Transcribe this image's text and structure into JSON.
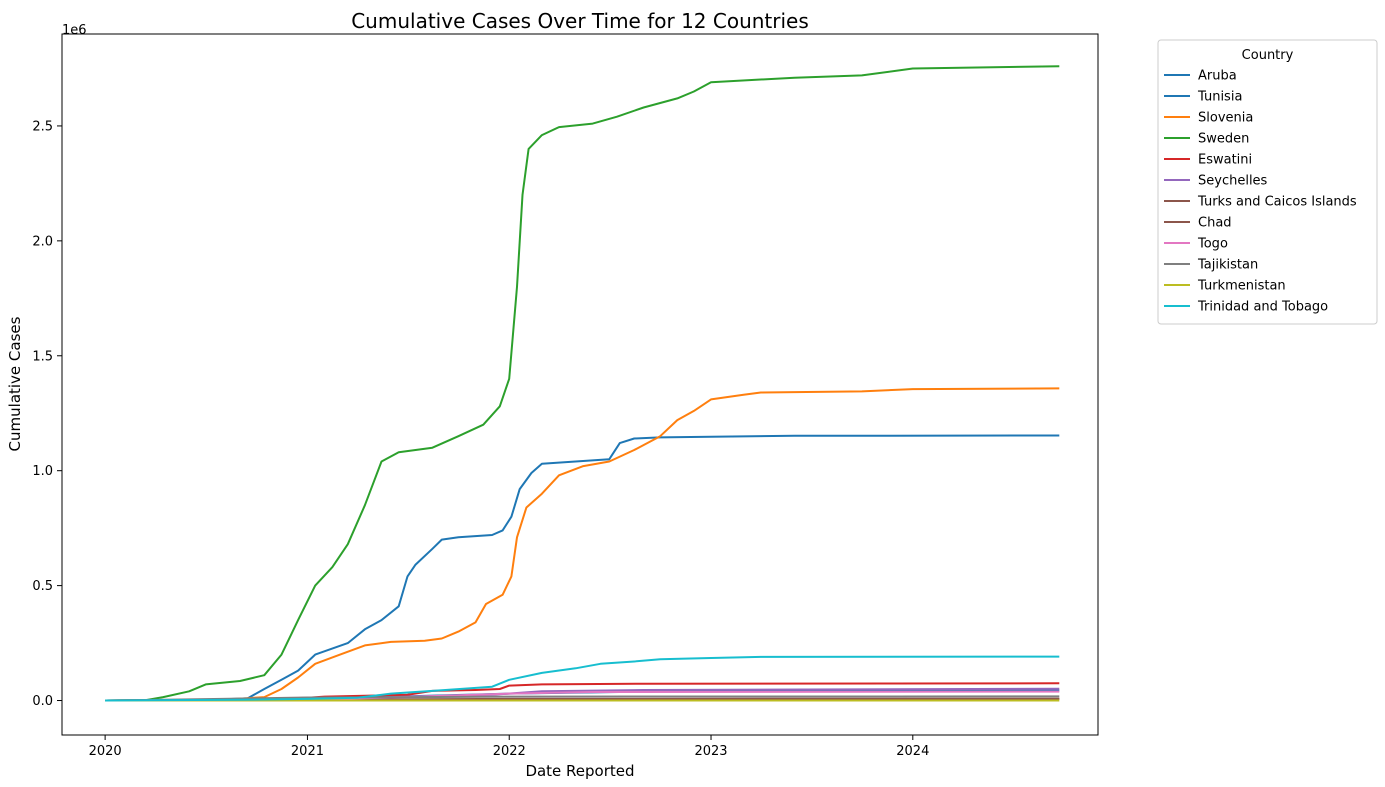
{
  "chart_data": {
    "type": "line",
    "title": "Cumulative Cases Over Time for 12 Countries",
    "xlabel": "Date Reported",
    "ylabel": "Cumulative Cases",
    "y_offset_label": "1e6",
    "ylim": [
      -150000,
      2900000
    ],
    "xlim": [
      "2019-10-15",
      "2024-12-01"
    ],
    "x_ticks": [
      "2020",
      "2021",
      "2022",
      "2023",
      "2024"
    ],
    "x_tick_dates": [
      "2020-01-01",
      "2021-01-01",
      "2022-01-01",
      "2023-01-01",
      "2024-01-01"
    ],
    "y_ticks": [
      0,
      500000,
      1000000,
      1500000,
      2000000,
      2500000
    ],
    "y_tick_labels": [
      "0.0",
      "0.5",
      "1.0",
      "1.5",
      "2.0",
      "2.5"
    ],
    "grid": false,
    "legend_title": "Country",
    "legend_position": "outside top-right",
    "series": [
      {
        "name": "Aruba",
        "color": "#1f77b4",
        "points": [
          [
            "2020-01-01",
            0
          ],
          [
            "2020-06-01",
            1000
          ],
          [
            "2021-01-01",
            7000
          ],
          [
            "2022-01-01",
            30000
          ],
          [
            "2023-01-01",
            43000
          ],
          [
            "2024-09-22",
            44000
          ]
        ]
      },
      {
        "name": "Tunisia",
        "color": "#1f77b4",
        "points": [
          [
            "2020-01-01",
            0
          ],
          [
            "2020-07-01",
            2000
          ],
          [
            "2020-09-15",
            10000
          ],
          [
            "2020-10-15",
            50000
          ],
          [
            "2020-11-15",
            90000
          ],
          [
            "2020-12-15",
            130000
          ],
          [
            "2021-01-15",
            200000
          ],
          [
            "2021-03-15",
            250000
          ],
          [
            "2021-04-15",
            310000
          ],
          [
            "2021-05-15",
            350000
          ],
          [
            "2021-06-15",
            410000
          ],
          [
            "2021-07-01",
            540000
          ],
          [
            "2021-07-15",
            590000
          ],
          [
            "2021-08-15",
            660000
          ],
          [
            "2021-09-01",
            700000
          ],
          [
            "2021-10-01",
            710000
          ],
          [
            "2021-12-01",
            720000
          ],
          [
            "2021-12-20",
            740000
          ],
          [
            "2022-01-05",
            800000
          ],
          [
            "2022-01-20",
            920000
          ],
          [
            "2022-02-10",
            990000
          ],
          [
            "2022-03-01",
            1030000
          ],
          [
            "2022-05-01",
            1040000
          ],
          [
            "2022-07-01",
            1050000
          ],
          [
            "2022-07-20",
            1120000
          ],
          [
            "2022-08-15",
            1140000
          ],
          [
            "2022-10-01",
            1145000
          ],
          [
            "2023-01-01",
            1148000
          ],
          [
            "2023-06-01",
            1152000
          ],
          [
            "2024-09-22",
            1153000
          ]
        ]
      },
      {
        "name": "Slovenia",
        "color": "#ff7f0e",
        "points": [
          [
            "2020-01-01",
            0
          ],
          [
            "2020-08-01",
            3000
          ],
          [
            "2020-10-15",
            15000
          ],
          [
            "2020-11-15",
            50000
          ],
          [
            "2020-12-15",
            100000
          ],
          [
            "2021-01-15",
            160000
          ],
          [
            "2021-03-01",
            200000
          ],
          [
            "2021-04-15",
            240000
          ],
          [
            "2021-06-01",
            255000
          ],
          [
            "2021-08-01",
            260000
          ],
          [
            "2021-09-01",
            270000
          ],
          [
            "2021-10-01",
            300000
          ],
          [
            "2021-11-01",
            340000
          ],
          [
            "2021-11-20",
            420000
          ],
          [
            "2021-12-20",
            460000
          ],
          [
            "2022-01-05",
            540000
          ],
          [
            "2022-01-15",
            710000
          ],
          [
            "2022-02-01",
            840000
          ],
          [
            "2022-03-01",
            900000
          ],
          [
            "2022-04-01",
            980000
          ],
          [
            "2022-05-15",
            1020000
          ],
          [
            "2022-07-01",
            1040000
          ],
          [
            "2022-08-15",
            1090000
          ],
          [
            "2022-10-01",
            1150000
          ],
          [
            "2022-11-01",
            1220000
          ],
          [
            "2022-12-01",
            1260000
          ],
          [
            "2023-01-01",
            1310000
          ],
          [
            "2023-03-01",
            1330000
          ],
          [
            "2023-04-01",
            1340000
          ],
          [
            "2023-10-01",
            1345000
          ],
          [
            "2024-01-01",
            1355000
          ],
          [
            "2024-09-22",
            1358000
          ]
        ]
      },
      {
        "name": "Sweden",
        "color": "#2ca02c",
        "points": [
          [
            "2020-01-01",
            0
          ],
          [
            "2020-03-15",
            2000
          ],
          [
            "2020-04-15",
            15000
          ],
          [
            "2020-06-01",
            40000
          ],
          [
            "2020-07-01",
            70000
          ],
          [
            "2020-09-01",
            85000
          ],
          [
            "2020-10-15",
            110000
          ],
          [
            "2020-11-15",
            200000
          ],
          [
            "2020-12-15",
            350000
          ],
          [
            "2021-01-15",
            500000
          ],
          [
            "2021-02-15",
            580000
          ],
          [
            "2021-03-15",
            680000
          ],
          [
            "2021-04-15",
            850000
          ],
          [
            "2021-05-15",
            1040000
          ],
          [
            "2021-06-15",
            1080000
          ],
          [
            "2021-08-15",
            1100000
          ],
          [
            "2021-10-01",
            1150000
          ],
          [
            "2021-11-15",
            1200000
          ],
          [
            "2021-12-15",
            1280000
          ],
          [
            "2022-01-01",
            1400000
          ],
          [
            "2022-01-15",
            1800000
          ],
          [
            "2022-01-25",
            2200000
          ],
          [
            "2022-02-05",
            2400000
          ],
          [
            "2022-03-01",
            2460000
          ],
          [
            "2022-04-01",
            2495000
          ],
          [
            "2022-06-01",
            2510000
          ],
          [
            "2022-07-15",
            2540000
          ],
          [
            "2022-09-01",
            2580000
          ],
          [
            "2022-11-01",
            2620000
          ],
          [
            "2022-12-01",
            2650000
          ],
          [
            "2023-01-01",
            2690000
          ],
          [
            "2023-06-01",
            2710000
          ],
          [
            "2023-10-01",
            2720000
          ],
          [
            "2024-01-01",
            2750000
          ],
          [
            "2024-09-22",
            2760000
          ]
        ]
      },
      {
        "name": "Eswatini",
        "color": "#d62728",
        "points": [
          [
            "2020-01-01",
            0
          ],
          [
            "2020-09-01",
            4000
          ],
          [
            "2021-01-01",
            12000
          ],
          [
            "2021-02-01",
            17000
          ],
          [
            "2021-07-01",
            25000
          ],
          [
            "2021-08-15",
            42000
          ],
          [
            "2021-11-01",
            46000
          ],
          [
            "2021-12-15",
            50000
          ],
          [
            "2022-01-01",
            65000
          ],
          [
            "2022-03-01",
            70000
          ],
          [
            "2022-09-01",
            73000
          ],
          [
            "2024-09-22",
            75000
          ]
        ]
      },
      {
        "name": "Seychelles",
        "color": "#9467bd",
        "points": [
          [
            "2020-01-01",
            0
          ],
          [
            "2021-01-01",
            1000
          ],
          [
            "2021-03-01",
            4000
          ],
          [
            "2021-06-01",
            15000
          ],
          [
            "2021-12-01",
            25000
          ],
          [
            "2022-03-01",
            40000
          ],
          [
            "2022-09-01",
            46000
          ],
          [
            "2024-09-22",
            51000
          ]
        ]
      },
      {
        "name": "Turks and Caicos Islands",
        "color": "#8c564b",
        "points": [
          [
            "2020-01-01",
            0
          ],
          [
            "2021-01-01",
            2000
          ],
          [
            "2022-01-01",
            4000
          ],
          [
            "2022-06-01",
            6000
          ],
          [
            "2024-09-22",
            7000
          ]
        ]
      },
      {
        "name": "Chad",
        "color": "#8c564b",
        "points": [
          [
            "2020-01-01",
            0
          ],
          [
            "2021-01-01",
            2000
          ],
          [
            "2021-06-01",
            5000
          ],
          [
            "2022-01-01",
            7000
          ],
          [
            "2024-09-22",
            8000
          ]
        ]
      },
      {
        "name": "Togo",
        "color": "#e377c2",
        "points": [
          [
            "2020-01-01",
            0
          ],
          [
            "2021-01-01",
            4000
          ],
          [
            "2021-06-01",
            13000
          ],
          [
            "2022-01-01",
            30000
          ],
          [
            "2022-06-01",
            37000
          ],
          [
            "2024-09-22",
            39000
          ]
        ]
      },
      {
        "name": "Tajikistan",
        "color": "#7f7f7f",
        "points": [
          [
            "2020-01-01",
            0
          ],
          [
            "2020-06-01",
            5000
          ],
          [
            "2021-01-01",
            13000
          ],
          [
            "2021-06-01",
            14000
          ],
          [
            "2022-01-01",
            17000
          ],
          [
            "2024-09-22",
            18000
          ]
        ]
      },
      {
        "name": "Turkmenistan",
        "color": "#bcbd22",
        "points": [
          [
            "2020-01-01",
            0
          ],
          [
            "2024-09-22",
            0
          ]
        ]
      },
      {
        "name": "Trinidad and Tobago",
        "color": "#17becf",
        "points": [
          [
            "2020-01-01",
            0
          ],
          [
            "2020-09-01",
            3000
          ],
          [
            "2021-01-01",
            7000
          ],
          [
            "2021-04-01",
            12000
          ],
          [
            "2021-06-01",
            30000
          ],
          [
            "2021-09-01",
            45000
          ],
          [
            "2021-12-01",
            60000
          ],
          [
            "2022-01-01",
            90000
          ],
          [
            "2022-03-01",
            120000
          ],
          [
            "2022-05-01",
            140000
          ],
          [
            "2022-06-15",
            160000
          ],
          [
            "2022-08-15",
            170000
          ],
          [
            "2022-10-01",
            180000
          ],
          [
            "2023-01-01",
            185000
          ],
          [
            "2023-04-01",
            190000
          ],
          [
            "2024-09-22",
            191000
          ]
        ]
      }
    ]
  }
}
